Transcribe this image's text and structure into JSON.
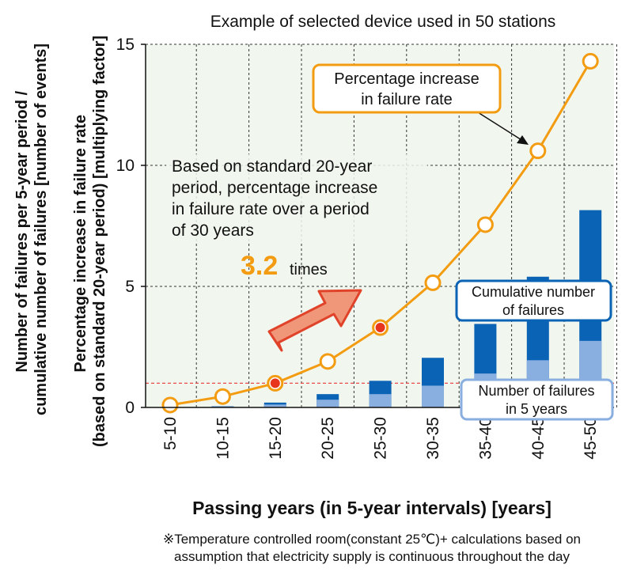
{
  "chart_data": {
    "type": "bar+line",
    "title": "Example of selected device used in 50 stations",
    "categories": [
      "5-10",
      "10-15",
      "15-20",
      "20-25",
      "25-30",
      "30-35",
      "35-40",
      "40-45",
      "45-50"
    ],
    "xlabel": "Passing years (in 5-year intervals) [years]",
    "ylabel_outer": [
      "Number of failures per 5-year period /",
      "cumulative number of failures [number of events]"
    ],
    "ylabel_inner": [
      "Percentage increase in failure rate",
      "(based on standard 20-year period) [multiplying factor]"
    ],
    "ylim": [
      0,
      15
    ],
    "yticks": [
      "0",
      "5",
      "10",
      "15"
    ],
    "grid": true,
    "series": [
      {
        "name": "Percentage increase in failure rate",
        "kind": "line",
        "values": [
          0.1,
          0.45,
          1.0,
          1.9,
          3.3,
          5.15,
          7.55,
          10.6,
          14.3
        ],
        "highlighted": [
          2,
          4
        ],
        "color": "#f39c12"
      },
      {
        "name": "Cumulative number of failures",
        "kind": "bar",
        "values": [
          0.0,
          0.05,
          0.2,
          0.55,
          1.1,
          2.05,
          3.45,
          5.4,
          8.15
        ],
        "color": "#0a63b4"
      },
      {
        "name": "Number of failures in 5 years",
        "kind": "bar",
        "values": [
          0.0,
          0.04,
          0.12,
          0.32,
          0.55,
          0.9,
          1.4,
          1.95,
          2.75
        ],
        "color": "#89aee0"
      }
    ],
    "reference_line": {
      "y": 1.0,
      "color": "#e84a4a"
    },
    "annotations": {
      "main_note": [
        "Based on standard 20-year",
        "period, percentage increase",
        "in failure rate over a period",
        "of 30 years"
      ],
      "multiplier_value": "3.2",
      "multiplier_unit": "times",
      "rate_box": [
        "Percentage increase",
        "in failure rate"
      ],
      "cumulative_box": [
        "Cumulative number",
        "of failures"
      ],
      "five_year_box": [
        "Number of failures",
        "in 5 years"
      ]
    },
    "footnote": [
      "※Temperature controlled room(constant 25℃)+ calculations based on",
      "assumption that electricity supply is continuous throughout the day"
    ]
  },
  "colors": {
    "plot_bg": "#f1f7ee",
    "grid": "#333333",
    "line": "#f39c12",
    "marker_fill": "#ffffff",
    "marker_highlight": "#e8351e",
    "bar_dark": "#0a63b4",
    "bar_light": "#89aee0",
    "arrow_fill": "#f0977a",
    "arrow_stroke": "#e0432a"
  }
}
